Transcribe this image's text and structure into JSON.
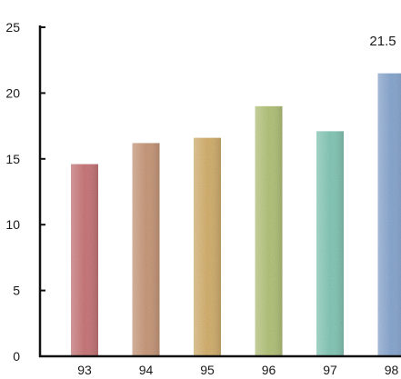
{
  "chart_data": {
    "type": "bar",
    "title": "",
    "xlabel": "",
    "ylabel": "",
    "categories": [
      "93",
      "94",
      "95",
      "96",
      "97",
      "98"
    ],
    "values": [
      14.6,
      16.2,
      16.6,
      19.0,
      17.1,
      21.5
    ],
    "ylim": [
      0,
      25
    ],
    "yticks": [
      "0",
      "5",
      "10",
      "15",
      "20",
      "25"
    ],
    "grid": false,
    "data_labels": [
      {
        "category": "98",
        "text": "21.5"
      }
    ],
    "bar_colors": [
      "#c9787a",
      "#c99a7c",
      "#d4b170",
      "#b4c47c",
      "#86c9b8",
      "#8aa8d0"
    ]
  }
}
